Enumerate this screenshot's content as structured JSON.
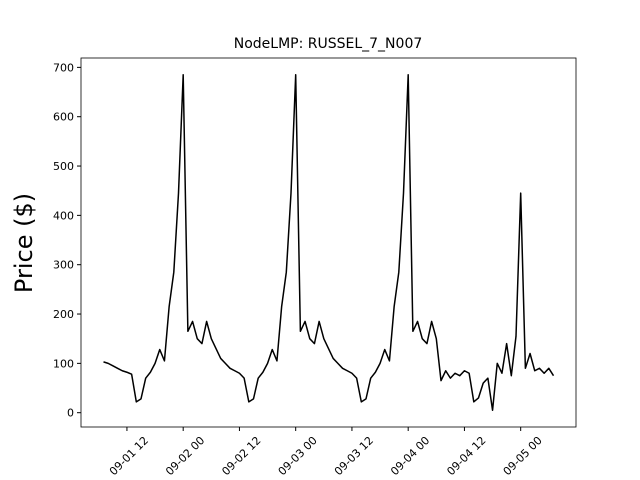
{
  "chart_data": {
    "type": "line",
    "title": "NodeLMP: RUSSEL_7_N007",
    "ylabel": "Price ($)",
    "color": "#000000",
    "x": [
      7,
      8,
      9,
      10,
      11,
      12,
      13,
      14,
      15,
      16,
      17,
      18,
      19,
      20,
      21,
      22,
      23,
      24,
      25,
      26,
      27,
      28,
      29,
      30,
      31,
      32,
      33,
      34,
      35,
      36,
      37,
      38,
      39,
      40,
      41,
      42,
      43,
      44,
      45,
      46,
      47,
      48,
      49,
      50,
      51,
      52,
      53,
      54,
      55,
      56,
      57,
      58,
      59,
      60,
      61,
      62,
      63,
      64,
      65,
      66,
      67,
      68,
      69,
      70,
      71,
      72,
      73,
      74,
      75,
      76,
      77,
      78,
      79,
      80,
      81,
      82,
      83,
      84,
      85,
      86,
      87,
      88,
      89,
      90,
      91,
      92,
      93,
      94,
      95,
      96,
      97,
      98,
      99,
      100,
      101,
      102,
      103
    ],
    "values": [
      103,
      100,
      95,
      90,
      85,
      82,
      78,
      22,
      28,
      70,
      82,
      100,
      128,
      105,
      215,
      285,
      445,
      685,
      165,
      185,
      150,
      140,
      185,
      150,
      130,
      110,
      100,
      90,
      85,
      80,
      70,
      22,
      28,
      70,
      82,
      100,
      128,
      105,
      215,
      285,
      445,
      685,
      165,
      185,
      150,
      140,
      185,
      150,
      130,
      110,
      100,
      90,
      85,
      80,
      70,
      22,
      28,
      70,
      82,
      100,
      128,
      105,
      215,
      285,
      445,
      685,
      165,
      185,
      150,
      140,
      185,
      150,
      65,
      85,
      70,
      80,
      75,
      85,
      80,
      22,
      30,
      60,
      70,
      5,
      100,
      80,
      140,
      75,
      155,
      445,
      90,
      120,
      85,
      90,
      80,
      90,
      75
    ],
    "xlim": [
      2.2,
      107.8
    ],
    "xticks": [
      {
        "value": 12,
        "label": "09-01 12"
      },
      {
        "value": 24,
        "label": "09-02 00"
      },
      {
        "value": 36,
        "label": "09-02 12"
      },
      {
        "value": 48,
        "label": "09-03 00"
      },
      {
        "value": 60,
        "label": "09-03 12"
      },
      {
        "value": 72,
        "label": "09-04 00"
      },
      {
        "value": 84,
        "label": "09-04 12"
      },
      {
        "value": 96,
        "label": "09-05 00"
      }
    ],
    "ylim": [
      -29,
      719
    ],
    "yticks": [
      0,
      100,
      200,
      300,
      400,
      500,
      600,
      700
    ]
  }
}
